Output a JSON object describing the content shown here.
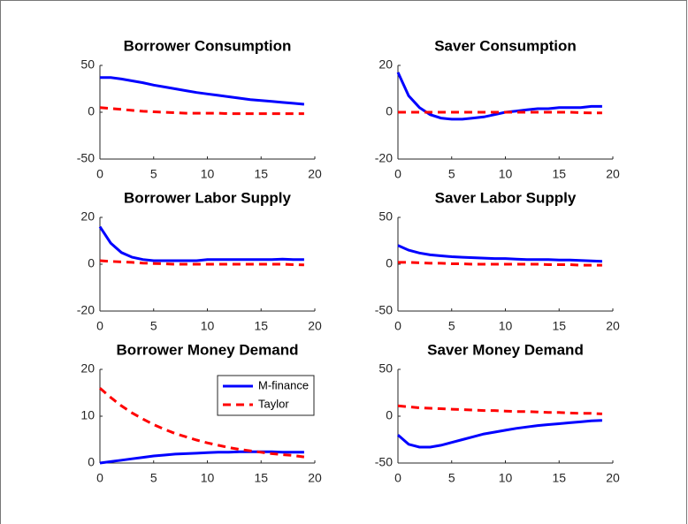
{
  "chart_data": [
    {
      "type": "line",
      "title": "Borrower Consumption",
      "x": [
        0,
        1,
        2,
        3,
        4,
        5,
        6,
        7,
        8,
        9,
        10,
        11,
        12,
        13,
        14,
        15,
        16,
        17,
        18,
        19
      ],
      "xlim": [
        0,
        20
      ],
      "xticks": [
        0,
        5,
        10,
        15,
        20
      ],
      "ylim": [
        -50,
        50
      ],
      "yticks": [
        -50,
        0,
        50
      ],
      "series": [
        {
          "color": "#0000ff",
          "linestyle": "solid",
          "values": [
            37,
            37,
            35.5,
            33.5,
            31.5,
            29,
            27,
            25,
            23,
            21,
            19.5,
            18,
            16.5,
            15,
            13.5,
            12.5,
            11.5,
            10.5,
            9.5,
            8.5
          ]
        },
        {
          "color": "#ff0000",
          "linestyle": "dashed",
          "values": [
            5,
            4,
            3,
            2,
            1,
            0.5,
            0,
            -0.5,
            -1,
            -1,
            -1,
            -1,
            -1.5,
            -1.5,
            -1.5,
            -1.5,
            -1.5,
            -1.5,
            -1.5,
            -1.5
          ]
        }
      ]
    },
    {
      "type": "line",
      "title": "Saver Consumption",
      "x": [
        0,
        1,
        2,
        3,
        4,
        5,
        6,
        7,
        8,
        9,
        10,
        11,
        12,
        13,
        14,
        15,
        16,
        17,
        18,
        19
      ],
      "xlim": [
        0,
        20
      ],
      "xticks": [
        0,
        5,
        10,
        15,
        20
      ],
      "ylim": [
        -20,
        20
      ],
      "yticks": [
        -20,
        0,
        20
      ],
      "series": [
        {
          "color": "#0000ff",
          "linestyle": "solid",
          "values": [
            17,
            7,
            2,
            -1,
            -2.5,
            -3,
            -3,
            -2.5,
            -2,
            -1,
            0,
            0.5,
            1,
            1.5,
            1.5,
            2,
            2,
            2,
            2.5,
            2.5
          ]
        },
        {
          "color": "#ff0000",
          "linestyle": "dashed",
          "values": [
            0,
            0,
            0,
            0,
            0,
            0,
            0,
            0,
            0,
            0,
            0,
            0,
            0,
            0,
            0,
            0,
            0,
            -0.2,
            -0.3,
            -0.3
          ]
        }
      ]
    },
    {
      "type": "line",
      "title": "Borrower Labor Supply",
      "x": [
        0,
        1,
        2,
        3,
        4,
        5,
        6,
        7,
        8,
        9,
        10,
        11,
        12,
        13,
        14,
        15,
        16,
        17,
        18,
        19
      ],
      "xlim": [
        0,
        20
      ],
      "xticks": [
        0,
        5,
        10,
        15,
        20
      ],
      "ylim": [
        -20,
        20
      ],
      "yticks": [
        -20,
        0,
        20
      ],
      "series": [
        {
          "color": "#0000ff",
          "linestyle": "solid",
          "values": [
            16,
            9,
            5,
            3,
            2,
            1.5,
            1.5,
            1.5,
            1.5,
            1.5,
            2,
            2,
            2,
            2,
            2,
            2,
            2,
            2.2,
            2,
            2
          ]
        },
        {
          "color": "#ff0000",
          "linestyle": "dashed",
          "values": [
            1.5,
            1.2,
            1,
            0.8,
            0.5,
            0.3,
            0.2,
            0,
            0,
            0,
            0,
            0,
            0,
            0,
            0,
            0,
            0,
            0,
            -0.2,
            -0.3
          ]
        }
      ]
    },
    {
      "type": "line",
      "title": "Saver Labor Supply",
      "x": [
        0,
        1,
        2,
        3,
        4,
        5,
        6,
        7,
        8,
        9,
        10,
        11,
        12,
        13,
        14,
        15,
        16,
        17,
        18,
        19
      ],
      "xlim": [
        0,
        20
      ],
      "xticks": [
        0,
        5,
        10,
        15,
        20
      ],
      "ylim": [
        -50,
        50
      ],
      "yticks": [
        -50,
        0,
        50
      ],
      "series": [
        {
          "color": "#0000ff",
          "linestyle": "solid",
          "values": [
            20,
            15,
            12,
            10,
            9,
            8,
            7.5,
            7,
            6.5,
            6,
            6,
            5.5,
            5,
            5,
            5,
            4.5,
            4.5,
            4,
            3.5,
            3
          ]
        },
        {
          "color": "#ff0000",
          "linestyle": "dashed",
          "values": [
            2,
            2,
            1.5,
            1,
            1,
            0.5,
            0.5,
            0,
            0,
            0,
            0,
            0,
            0,
            0,
            -0.5,
            -0.5,
            -0.5,
            -1,
            -1,
            -1
          ]
        }
      ]
    },
    {
      "type": "line",
      "title": "Borrower Money Demand",
      "x": [
        0,
        1,
        2,
        3,
        4,
        5,
        6,
        7,
        8,
        9,
        10,
        11,
        12,
        13,
        14,
        15,
        16,
        17,
        18,
        19
      ],
      "xlim": [
        0,
        20
      ],
      "xticks": [
        0,
        5,
        10,
        15,
        20
      ],
      "ylim": [
        0,
        20
      ],
      "yticks": [
        0,
        10,
        20
      ],
      "legend": "northeast",
      "series": [
        {
          "name": "M-finance",
          "color": "#0000ff",
          "linestyle": "solid",
          "values": [
            0,
            0.3,
            0.6,
            0.9,
            1.2,
            1.5,
            1.7,
            1.9,
            2,
            2.1,
            2.2,
            2.3,
            2.3,
            2.4,
            2.4,
            2.4,
            2.4,
            2.3,
            2.3,
            2.3
          ]
        },
        {
          "name": "Taylor",
          "color": "#ff0000",
          "linestyle": "dashed",
          "values": [
            16,
            14,
            12.2,
            10.7,
            9.4,
            8.2,
            7.2,
            6.3,
            5.6,
            4.9,
            4.3,
            3.8,
            3.3,
            2.9,
            2.6,
            2.3,
            2,
            1.8,
            1.6,
            1.3
          ]
        }
      ]
    },
    {
      "type": "line",
      "title": "Saver Money Demand",
      "x": [
        0,
        1,
        2,
        3,
        4,
        5,
        6,
        7,
        8,
        9,
        10,
        11,
        12,
        13,
        14,
        15,
        16,
        17,
        18,
        19
      ],
      "xlim": [
        0,
        20
      ],
      "xticks": [
        0,
        5,
        10,
        15,
        20
      ],
      "ylim": [
        -50,
        50
      ],
      "yticks": [
        -50,
        0,
        50
      ],
      "series": [
        {
          "color": "#0000ff",
          "linestyle": "solid",
          "values": [
            -20,
            -30,
            -33,
            -33,
            -31,
            -28,
            -25,
            -22,
            -19,
            -17,
            -15,
            -13,
            -11.5,
            -10,
            -9,
            -8,
            -7,
            -6,
            -5,
            -4.5
          ]
        },
        {
          "color": "#ff0000",
          "linestyle": "dashed",
          "values": [
            11,
            10,
            9,
            8.5,
            8,
            7.5,
            7,
            6.5,
            6,
            6,
            5.5,
            5,
            5,
            4.5,
            4,
            4,
            3.5,
            3,
            3,
            2.5
          ]
        }
      ]
    }
  ]
}
